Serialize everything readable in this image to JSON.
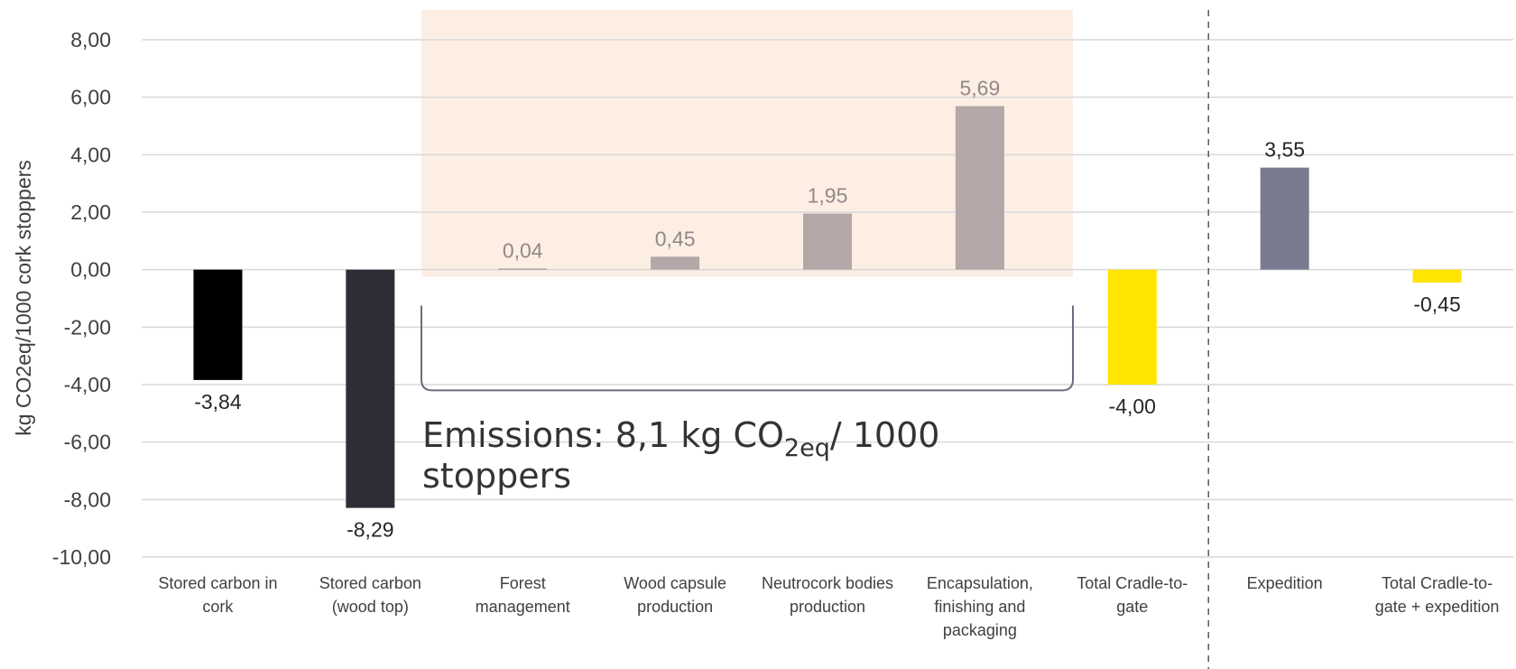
{
  "chart_data": {
    "type": "bar",
    "ylabel": "kg CO2eq/1000 cork stoppers",
    "ylim": [
      -10,
      8
    ],
    "yticks": [
      8,
      6,
      4,
      2,
      0,
      -2,
      -4,
      -6,
      -8,
      -10
    ],
    "ytick_labels": [
      "8,00",
      "6,00",
      "4,00",
      "2,00",
      "0,00",
      "-2,00",
      "-4,00",
      "-6,00",
      "-8,00",
      "-10,00"
    ],
    "grid": true,
    "categories": [
      [
        "Stored carbon in",
        "cork"
      ],
      [
        "Stored carbon",
        "(wood top)"
      ],
      [
        "Forest",
        "management"
      ],
      [
        "Wood capsule",
        "production"
      ],
      [
        "Neutrocork bodies",
        "production"
      ],
      [
        "Encapsulation,",
        "finishing and",
        "packaging"
      ],
      [
        "Total Cradle-to-",
        "gate"
      ],
      [
        "Expedition"
      ],
      [
        "Total Cradle-to-",
        "gate + expedition"
      ]
    ],
    "values": [
      -3.84,
      -8.29,
      0.04,
      0.45,
      1.95,
      5.69,
      -4.0,
      3.55,
      -0.45
    ],
    "value_labels": [
      "-3,84",
      "-8,29",
      "0,04",
      "0,45",
      "1,95",
      "5,69",
      "-4,00",
      "3,55",
      "-0,45"
    ],
    "bar_colors": [
      "#000000",
      "#2e2d35",
      "#b3a7a8",
      "#b3a7a8",
      "#b3a7a8",
      "#b3a7a8",
      "#ffe500",
      "#7a7a91",
      "#ffe500"
    ],
    "label_colors": [
      "#262626",
      "#262626",
      "#938888",
      "#938888",
      "#938888",
      "#938888",
      "#262626",
      "#262626",
      "#262626"
    ],
    "highlight_color": "#fdeee4",
    "divider_after_category": 6,
    "annotation": {
      "prefix": "Emissions: 8,1 kg CO",
      "subscript": "2eq",
      "suffix": "/ 1000",
      "line2": "stoppers"
    }
  }
}
